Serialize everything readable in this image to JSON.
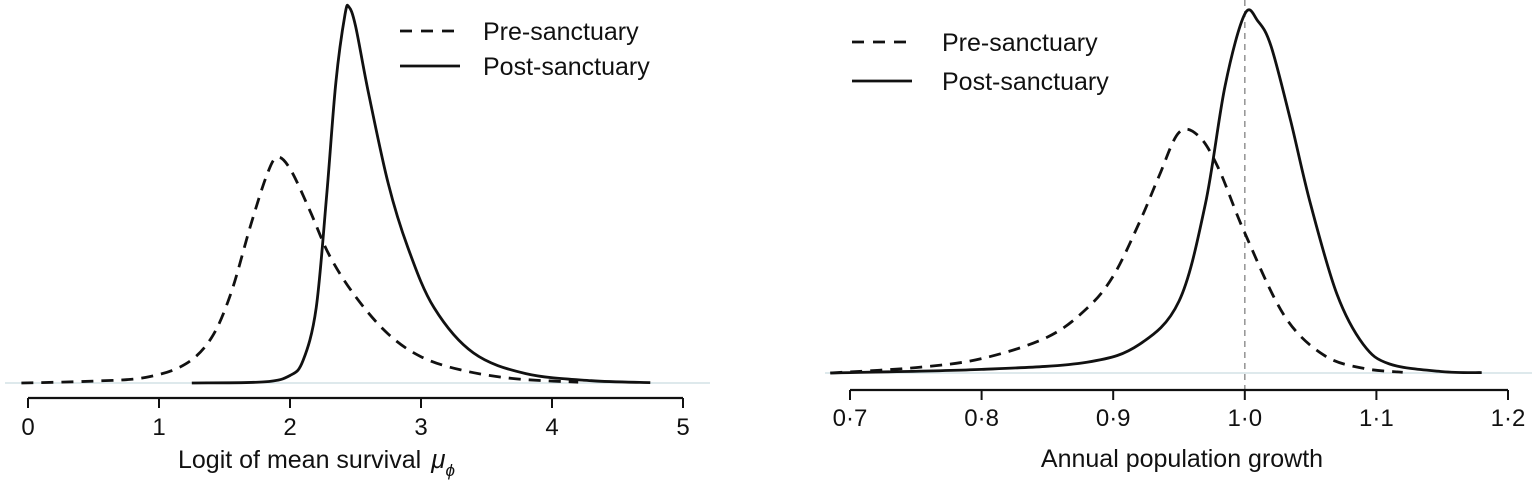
{
  "chart_data": [
    {
      "type": "line",
      "title": "",
      "xlabel": "Logit of mean survival",
      "xlabel_symbol": "μ",
      "xlabel_subscript": "ϕ",
      "ylabel": "",
      "xlim": [
        -0.1,
        5.1
      ],
      "xticks": [
        0,
        1,
        2,
        3,
        4,
        5
      ],
      "xtick_labels": [
        "0",
        "1",
        "2",
        "3",
        "4",
        "5"
      ],
      "grid": false,
      "legend_position": "top-right",
      "series": [
        {
          "name": "Pre-sanctuary",
          "style": "dashed",
          "x": [
            -0.05,
            0.5,
            0.9,
            1.2,
            1.4,
            1.55,
            1.7,
            1.82,
            1.9,
            2.0,
            2.15,
            2.3,
            2.5,
            2.75,
            3.0,
            3.3,
            3.7,
            4.2
          ],
          "y": [
            0.0,
            0.005,
            0.015,
            0.05,
            0.12,
            0.24,
            0.42,
            0.55,
            0.6,
            0.57,
            0.46,
            0.34,
            0.23,
            0.13,
            0.07,
            0.035,
            0.012,
            0.002
          ]
        },
        {
          "name": "Post-sanctuary",
          "style": "solid",
          "x": [
            1.25,
            1.8,
            2.0,
            2.1,
            2.2,
            2.28,
            2.35,
            2.42,
            2.45,
            2.5,
            2.6,
            2.75,
            2.9,
            3.1,
            3.4,
            3.8,
            4.3,
            4.75
          ],
          "y": [
            0.0,
            0.003,
            0.02,
            0.06,
            0.2,
            0.5,
            0.8,
            0.98,
            1.0,
            0.95,
            0.77,
            0.53,
            0.36,
            0.2,
            0.08,
            0.025,
            0.006,
            0.001
          ]
        }
      ]
    },
    {
      "type": "line",
      "title": "",
      "xlabel": "Annual population growth",
      "ylabel": "",
      "xlim": [
        0.685,
        1.215
      ],
      "xticks": [
        0.7,
        0.8,
        0.9,
        1.0,
        1.1,
        1.2
      ],
      "xtick_labels": [
        "0·7",
        "0·8",
        "0·9",
        "1·0",
        "1·1",
        "1·2"
      ],
      "reference_line_x": 1.0,
      "grid": false,
      "legend_position": "top-left",
      "series": [
        {
          "name": "Pre-sanctuary",
          "style": "dashed",
          "x": [
            0.685,
            0.75,
            0.8,
            0.85,
            0.88,
            0.9,
            0.92,
            0.935,
            0.95,
            0.965,
            0.98,
            1.0,
            1.03,
            1.06,
            1.09,
            1.12
          ],
          "y": [
            0.0,
            0.015,
            0.04,
            0.1,
            0.18,
            0.27,
            0.42,
            0.55,
            0.67,
            0.66,
            0.57,
            0.39,
            0.16,
            0.05,
            0.013,
            0.002
          ]
        },
        {
          "name": "Post-sanctuary",
          "style": "solid",
          "x": [
            0.685,
            0.8,
            0.88,
            0.92,
            0.95,
            0.97,
            0.985,
            1.0,
            1.01,
            1.02,
            1.035,
            1.05,
            1.07,
            1.09,
            1.11,
            1.15,
            1.18
          ],
          "y": [
            0.0,
            0.01,
            0.03,
            0.08,
            0.2,
            0.47,
            0.8,
            1.0,
            0.98,
            0.91,
            0.7,
            0.47,
            0.22,
            0.08,
            0.025,
            0.004,
            0.001
          ]
        }
      ]
    }
  ]
}
